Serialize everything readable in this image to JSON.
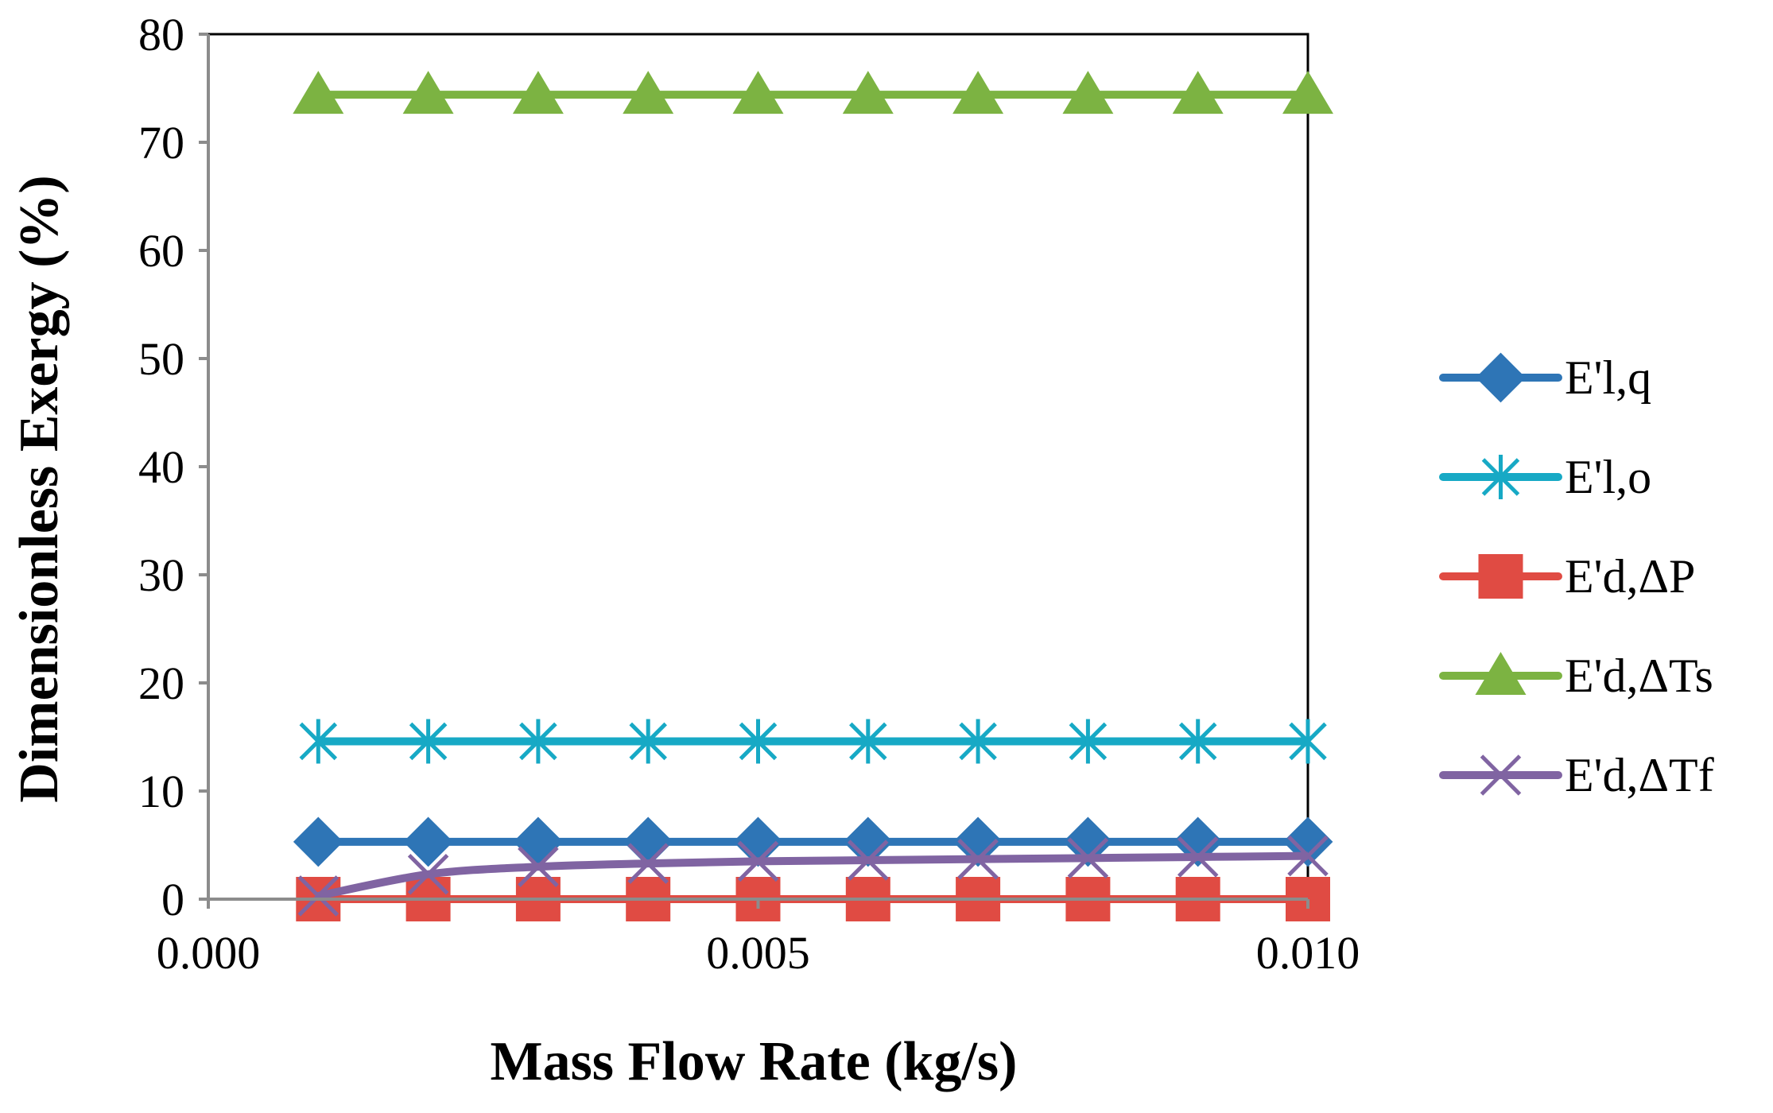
{
  "chart_data": {
    "type": "line",
    "title": "",
    "xlabel": "Mass Flow Rate (kg/s)",
    "ylabel": "Dimensionless Exergy (%)",
    "xlim": [
      0,
      0.01
    ],
    "ylim": [
      0,
      80
    ],
    "x_ticks": [
      0,
      0.005,
      0.01
    ],
    "x_tick_labels": [
      "0.000",
      "0.005",
      "0.010"
    ],
    "y_ticks": [
      0,
      10,
      20,
      30,
      40,
      50,
      60,
      70,
      80
    ],
    "y_tick_labels": [
      "0",
      "10",
      "20",
      "30",
      "40",
      "50",
      "60",
      "70",
      "80"
    ],
    "grid": false,
    "legend_position": "right",
    "x": [
      0.001,
      0.002,
      0.003,
      0.004,
      0.005,
      0.006,
      0.007,
      0.008,
      0.009,
      0.01
    ],
    "series": [
      {
        "name": "E'l,q",
        "color": "#2e75b6",
        "marker": "diamond",
        "values": [
          5.3,
          5.3,
          5.3,
          5.3,
          5.3,
          5.3,
          5.3,
          5.3,
          5.3,
          5.3
        ]
      },
      {
        "name": "E'l,o",
        "color": "#17a9c5",
        "marker": "asterisk",
        "values": [
          14.6,
          14.6,
          14.6,
          14.6,
          14.6,
          14.6,
          14.6,
          14.6,
          14.6,
          14.6
        ]
      },
      {
        "name": "E'd,ΔP",
        "color": "#e04b43",
        "marker": "square",
        "values": [
          0.0,
          0.0,
          0.0,
          0.0,
          0.0,
          0.0,
          0.0,
          0.0,
          0.0,
          0.0
        ]
      },
      {
        "name": "E'd,ΔTs",
        "color": "#7cb342",
        "marker": "triangle",
        "values": [
          74.4,
          74.4,
          74.4,
          74.4,
          74.4,
          74.4,
          74.4,
          74.4,
          74.4,
          74.4
        ]
      },
      {
        "name": "E'd,ΔTf",
        "color": "#8064a2",
        "marker": "x",
        "values": [
          0.3,
          2.3,
          3.0,
          3.3,
          3.5,
          3.6,
          3.7,
          3.8,
          3.9,
          4.0
        ]
      }
    ]
  }
}
